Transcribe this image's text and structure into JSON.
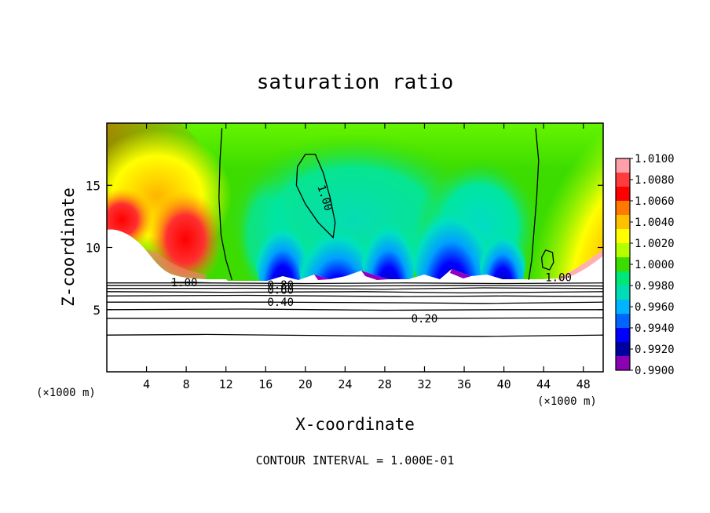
{
  "chart_data": {
    "type": "heatmap",
    "title": "saturation ratio",
    "xlabel": "X-coordinate",
    "ylabel": "Z-coordinate",
    "x_unit_left": "(×1000 m)",
    "x_unit_right": "(×1000 m)",
    "xlim": [
      0,
      50
    ],
    "ylim": [
      0,
      20
    ],
    "x_ticks": [
      4,
      8,
      12,
      16,
      20,
      24,
      28,
      32,
      36,
      40,
      44,
      48
    ],
    "y_ticks": [
      5,
      10,
      15
    ],
    "footer": "CONTOUR INTERVAL = 1.000E-01",
    "colorbar": {
      "labels": [
        "1.0100",
        "1.0080",
        "1.0060",
        "1.0040",
        "1.0020",
        "1.0000",
        "0.9980",
        "0.9960",
        "0.9940",
        "0.9920",
        "0.9900"
      ],
      "colors": [
        "#ffa0a8",
        "#ff3c3c",
        "#ff0000",
        "#ff7a00",
        "#ffc000",
        "#ffff00",
        "#b4ff00",
        "#3cdc00",
        "#00e678",
        "#00dcb4",
        "#00b4ff",
        "#0064ff",
        "#0000ff",
        "#0000a0",
        "#8c00b4"
      ]
    },
    "contour_labels": [
      {
        "text": "1.00",
        "x": 22.0,
        "z": 14.0
      },
      {
        "text": "1.00",
        "x": 7.8,
        "z": 7.2
      },
      {
        "text": "1.00",
        "x": 45.5,
        "z": 7.6
      },
      {
        "text": "0.80",
        "x": 17.5,
        "z": 7.0
      },
      {
        "text": "0.60",
        "x": 17.5,
        "z": 6.6
      },
      {
        "text": "0.40",
        "x": 17.5,
        "z": 5.6
      },
      {
        "text": "0.20",
        "x": 32.0,
        "z": 4.3
      }
    ],
    "contours": [
      {
        "level": 1.0,
        "points": [
          [
            11.6,
            19.6
          ],
          [
            11.4,
            17
          ],
          [
            11.3,
            14
          ],
          [
            11.5,
            11
          ],
          [
            12.0,
            9.0
          ],
          [
            12.6,
            7.4
          ]
        ]
      },
      {
        "level": 1.0,
        "points": [
          [
            43.2,
            19.6
          ],
          [
            43.5,
            17
          ],
          [
            43.3,
            14
          ],
          [
            43.0,
            11
          ],
          [
            42.8,
            9.0
          ],
          [
            42.5,
            7.4
          ]
        ]
      },
      {
        "level": 1.0,
        "points": [
          [
            20.0,
            17.5
          ],
          [
            19.2,
            16.5
          ],
          [
            19.1,
            15.0
          ],
          [
            20.0,
            13.5
          ],
          [
            21.3,
            12.0
          ],
          [
            22.8,
            10.8
          ],
          [
            23.0,
            12.0
          ],
          [
            22.5,
            14.0
          ],
          [
            21.8,
            16.0
          ],
          [
            21.0,
            17.5
          ],
          [
            20.0,
            17.5
          ]
        ]
      },
      {
        "level": 1.0,
        "points": [
          [
            44.2,
            9.8
          ],
          [
            43.8,
            9.2
          ],
          [
            43.9,
            8.4
          ],
          [
            44.6,
            8.2
          ],
          [
            45.0,
            8.8
          ],
          [
            44.9,
            9.6
          ],
          [
            44.2,
            9.8
          ]
        ]
      },
      {
        "level": 1.0,
        "points": [
          [
            6.5,
            7.2
          ],
          [
            8.5,
            7.2
          ],
          [
            10.5,
            7.15
          ]
        ]
      },
      {
        "level": 0.9,
        "points": [
          [
            0,
            7.15
          ],
          [
            10,
            7.15
          ],
          [
            20,
            7.1
          ],
          [
            30,
            7.15
          ],
          [
            40,
            7.1
          ],
          [
            50,
            7.15
          ]
        ]
      },
      {
        "level": 0.8,
        "points": [
          [
            0,
            6.95
          ],
          [
            12,
            6.95
          ],
          [
            24,
            6.9
          ],
          [
            36,
            6.95
          ],
          [
            50,
            6.9
          ]
        ]
      },
      {
        "level": 0.7,
        "points": [
          [
            0,
            6.7
          ],
          [
            14,
            6.72
          ],
          [
            28,
            6.65
          ],
          [
            38,
            6.75
          ],
          [
            50,
            6.7
          ]
        ]
      },
      {
        "level": 0.6,
        "points": [
          [
            0,
            6.45
          ],
          [
            12,
            6.4
          ],
          [
            26,
            6.45
          ],
          [
            36,
            6.35
          ],
          [
            50,
            6.45
          ]
        ]
      },
      {
        "level": 0.5,
        "points": [
          [
            0,
            6.1
          ],
          [
            14,
            6.15
          ],
          [
            30,
            6.05
          ],
          [
            40,
            6.1
          ],
          [
            50,
            6.05
          ]
        ]
      },
      {
        "level": 0.4,
        "points": [
          [
            0,
            5.6
          ],
          [
            16,
            5.6
          ],
          [
            30,
            5.55
          ],
          [
            38,
            5.5
          ],
          [
            50,
            5.6
          ]
        ]
      },
      {
        "level": 0.3,
        "points": [
          [
            0,
            5.0
          ],
          [
            14,
            5.05
          ],
          [
            28,
            4.95
          ],
          [
            40,
            5.0
          ],
          [
            50,
            5.0
          ]
        ]
      },
      {
        "level": 0.2,
        "points": [
          [
            0,
            4.3
          ],
          [
            16,
            4.3
          ],
          [
            32,
            4.3
          ],
          [
            50,
            4.35
          ]
        ]
      },
      {
        "level": 0.1,
        "points": [
          [
            0,
            2.95
          ],
          [
            10,
            3.0
          ],
          [
            24,
            2.9
          ],
          [
            38,
            2.85
          ],
          [
            50,
            2.95
          ]
        ]
      }
    ]
  }
}
